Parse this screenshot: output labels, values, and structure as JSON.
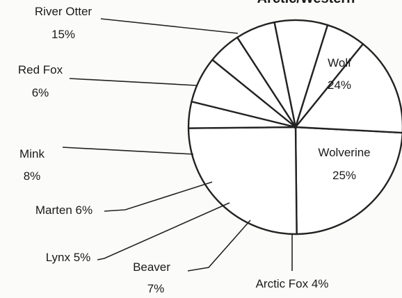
{
  "chart_data": {
    "type": "pie",
    "title": "Arctic/Western",
    "slices": [
      {
        "name": "Wolf",
        "pct_label": "24%",
        "value": 24
      },
      {
        "name": "Wolverine",
        "pct_label": "25%",
        "value": 25
      },
      {
        "name": "Arctic Fox",
        "pct_label": "4%",
        "value": 4
      },
      {
        "name": "Beaver",
        "pct_label": "7%",
        "value": 7
      },
      {
        "name": "Lynx",
        "pct_label": "5%",
        "value": 5
      },
      {
        "name": "Marten",
        "pct_label": "6%",
        "value": 6
      },
      {
        "name": "Mink",
        "pct_label": "8%",
        "value": 8
      },
      {
        "name": "Red Fox",
        "pct_label": "6%",
        "value": 6
      },
      {
        "name": "River Otter",
        "pct_label": "15%",
        "value": 15
      }
    ],
    "start_angle_deg": 93,
    "direction": "clockwise",
    "legend": "none",
    "colors": {
      "stroke": "#222222",
      "fill": "#ffffff",
      "text": "#1a1a1a"
    }
  }
}
